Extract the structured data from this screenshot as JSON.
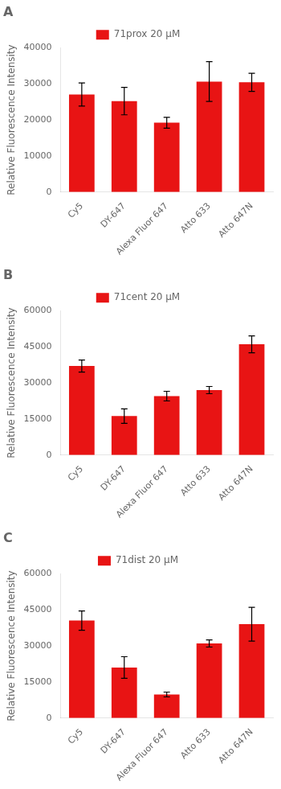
{
  "chart_data": [
    {
      "type": "bar",
      "title": "A",
      "ylabel": "Relative Fluorescence Intensity",
      "categories": [
        "Cy5",
        "DY-647",
        "Alexa Fluor 647",
        "Atto 633",
        "Atto 647N"
      ],
      "series": [
        {
          "name": "71prox 20 μM",
          "color": "#e81414",
          "values": [
            27000,
            25200,
            19200,
            30600,
            30400
          ],
          "errors": [
            3200,
            3800,
            1500,
            5500,
            2500
          ]
        }
      ],
      "ylim": [
        0,
        40000
      ],
      "yticks": [
        0,
        10000,
        20000,
        30000,
        40000
      ],
      "grid": false,
      "legend": "top"
    },
    {
      "type": "bar",
      "title": "B",
      "ylabel": "Relative Fluorescence Intensity",
      "categories": [
        "Cy5",
        "DY-647",
        "Alexa Fluor 647",
        "Atto 633",
        "Atto 647N"
      ],
      "series": [
        {
          "name": "71cent 20 μM",
          "color": "#e81414",
          "values": [
            37000,
            16200,
            24500,
            27000,
            46000
          ],
          "errors": [
            2500,
            3000,
            2000,
            1500,
            3500
          ]
        }
      ],
      "ylim": [
        0,
        60000
      ],
      "yticks": [
        0,
        15000,
        30000,
        45000,
        60000
      ],
      "grid": false,
      "legend": "top"
    },
    {
      "type": "bar",
      "title": "C",
      "ylabel": "Relative Fluorescence Intensity",
      "categories": [
        "Cy5",
        "DY-647",
        "Alexa Fluor 647",
        "Atto 633",
        "Atto 647N"
      ],
      "series": [
        {
          "name": "71dist 20 μM",
          "color": "#e81414",
          "values": [
            40500,
            21000,
            9800,
            31000,
            39000
          ],
          "errors": [
            4000,
            4500,
            1000,
            1500,
            7000
          ]
        }
      ],
      "ylim": [
        0,
        60000
      ],
      "yticks": [
        0,
        15000,
        30000,
        45000,
        60000
      ],
      "grid": false,
      "legend": "top"
    }
  ]
}
